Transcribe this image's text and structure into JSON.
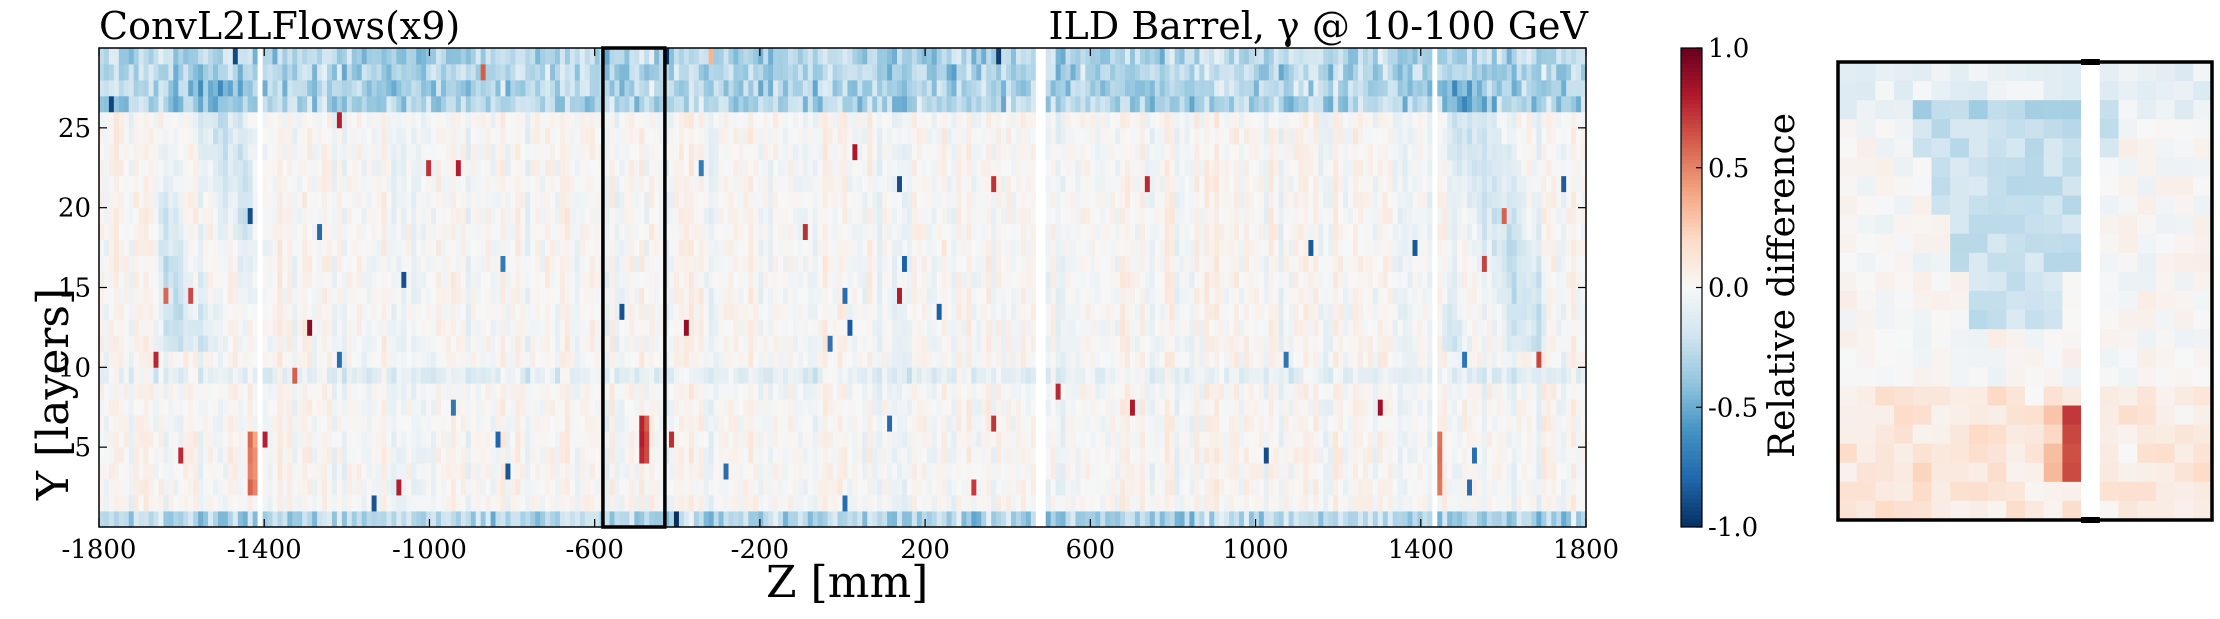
{
  "chart_data": {
    "type": "heatmap",
    "title_left": "ConvL2LFlows(x9)",
    "title_right": "ILD Barrel, γ @ 10-100 GeV",
    "xlabel": "Z [mm]",
    "ylabel": "Y [layers]",
    "xlim": [
      -1800,
      1800
    ],
    "ylim": [
      0,
      30
    ],
    "x_ticks": [
      "-1800",
      "-1400",
      "-1000",
      "-600",
      "-200",
      "200",
      "600",
      "1000",
      "1400",
      "1800"
    ],
    "y_ticks": [
      "5",
      "10",
      "15",
      "20",
      "25"
    ],
    "colorbar": {
      "label": "Relative difference",
      "range": [
        -1.0,
        1.0
      ],
      "ticks": [
        "1.0",
        "0.5",
        "0.0",
        "-0.5",
        "-1.0"
      ],
      "colormap": "RdBu_r",
      "colors": [
        "#053061",
        "#2166ac",
        "#4393c3",
        "#92c5de",
        "#d1e5f0",
        "#f7f7f7",
        "#fddbc7",
        "#f4a582",
        "#d6604d",
        "#b2182b",
        "#67001f"
      ]
    },
    "highlight_region": {
      "z_range": [
        -580,
        -430
      ],
      "y_range": [
        0,
        30
      ]
    },
    "gaps_z": [
      -1410,
      480,
      1430
    ],
    "features": [
      {
        "description": "diagonal blue bands",
        "z_range": [
          -1650,
          -1430
        ],
        "y_range": [
          11,
          28
        ],
        "value": -0.2
      },
      {
        "description": "diagonal blue bands",
        "z_range": [
          1450,
          1700
        ],
        "y_range": [
          11,
          28
        ],
        "value": -0.2
      },
      {
        "description": "blue band near top edge",
        "y_range": [
          26,
          30
        ],
        "value": -0.3
      },
      {
        "description": "blue band near bottom edge",
        "y_range": [
          0,
          1
        ],
        "value": -0.3
      },
      {
        "description": "warm streak",
        "z": -1420,
        "y_range": [
          2,
          6
        ],
        "value": 0.5
      },
      {
        "description": "warm streak",
        "z": -480,
        "y_range": [
          4,
          7
        ],
        "value": 0.7
      },
      {
        "description": "warm streak",
        "z": 1440,
        "y_range": [
          2,
          6
        ],
        "value": 0.5
      },
      {
        "description": "light blue horizontal band",
        "y_range": [
          9,
          10
        ],
        "value": -0.1
      }
    ],
    "inset": {
      "description": "zoom of highlighted region",
      "gap_after_col": 13,
      "cols": 20,
      "rows": 24
    }
  }
}
